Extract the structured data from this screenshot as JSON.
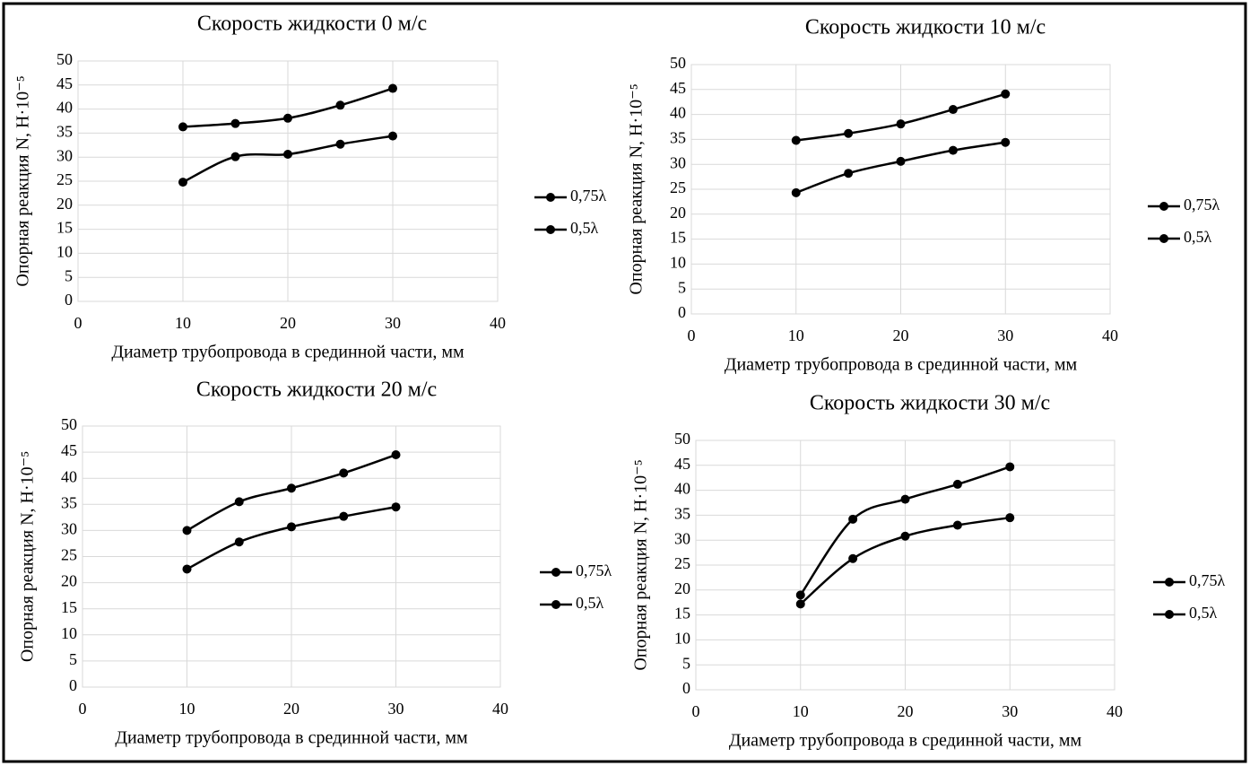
{
  "chart_data": [
    {
      "type": "line",
      "title": "Скорость жидкости 0 м/с",
      "xlabel": "Диаметр трубопровода в срединной части, мм",
      "ylabel": "Опорная реакция N, Н·10⁻⁵",
      "x": [
        10,
        15,
        20,
        25,
        30
      ],
      "series": [
        {
          "name": "0,75λ",
          "color": "#000000",
          "values": [
            36.3,
            37,
            38.1,
            40.8,
            44.3
          ]
        },
        {
          "name": "0,5λ",
          "color": "#000000",
          "values": [
            24.8,
            30.1,
            30.6,
            32.7,
            34.4
          ]
        }
      ],
      "xlim": [
        0,
        40
      ],
      "xticks": [
        0,
        10,
        20,
        30,
        40
      ],
      "ylim": [
        0,
        50
      ],
      "yticks": [
        0,
        5,
        10,
        15,
        20,
        25,
        30,
        35,
        40,
        45,
        50
      ],
      "grid": true,
      "legend": "right"
    },
    {
      "type": "line",
      "title": "Скорость жидкости 10 м/с",
      "xlabel": "Диаметр трубопровода в срединной части, мм",
      "ylabel": "Опорная реакция N, Н·10⁻⁵",
      "x": [
        10,
        15,
        20,
        25,
        30
      ],
      "series": [
        {
          "name": "0,75λ",
          "color": "#000000",
          "values": [
            34.8,
            36.2,
            38.1,
            41,
            44.1
          ]
        },
        {
          "name": "0,5λ",
          "color": "#000000",
          "values": [
            24.3,
            28.2,
            30.6,
            32.8,
            34.4
          ]
        }
      ],
      "xlim": [
        0,
        40
      ],
      "xticks": [
        0,
        10,
        20,
        30,
        40
      ],
      "ylim": [
        0,
        50
      ],
      "yticks": [
        0,
        5,
        10,
        15,
        20,
        25,
        30,
        35,
        40,
        45,
        50
      ],
      "grid": true,
      "legend": "right"
    },
    {
      "type": "line",
      "title": "Скорость жидкости 20 м/с",
      "xlabel": "Диаметр трубопровода в срединной части, мм",
      "ylabel": "Опорная реакция N, Н·10⁻⁵",
      "x": [
        10,
        15,
        20,
        25,
        30
      ],
      "series": [
        {
          "name": "0,75λ",
          "color": "#000000",
          "values": [
            30,
            35.5,
            38.1,
            41,
            44.5
          ]
        },
        {
          "name": "0,5λ",
          "color": "#000000",
          "values": [
            22.6,
            27.8,
            30.7,
            32.7,
            34.5
          ]
        }
      ],
      "xlim": [
        0,
        40
      ],
      "xticks": [
        0,
        10,
        20,
        30,
        40
      ],
      "ylim": [
        0,
        50
      ],
      "yticks": [
        0,
        5,
        10,
        15,
        20,
        25,
        30,
        35,
        40,
        45,
        50
      ],
      "grid": true,
      "legend": "right"
    },
    {
      "type": "line",
      "title": "Скорость жидкости 30 м/с",
      "xlabel": "Диаметр трубопровода в срединной части, мм",
      "ylabel": "Опорная реакция N, Н·10⁻⁵",
      "x": [
        10,
        15,
        20,
        25,
        30
      ],
      "series": [
        {
          "name": "0,75λ",
          "color": "#000000",
          "values": [
            19,
            34.2,
            38.2,
            41.2,
            44.7
          ]
        },
        {
          "name": "0,5λ",
          "color": "#000000",
          "values": [
            17.2,
            26.3,
            30.8,
            33,
            34.5
          ]
        }
      ],
      "xlim": [
        0,
        40
      ],
      "xticks": [
        0,
        10,
        20,
        30,
        40
      ],
      "ylim": [
        0,
        50
      ],
      "yticks": [
        0,
        5,
        10,
        15,
        20,
        25,
        30,
        35,
        40,
        45,
        50
      ],
      "grid": true,
      "legend": "right"
    }
  ]
}
